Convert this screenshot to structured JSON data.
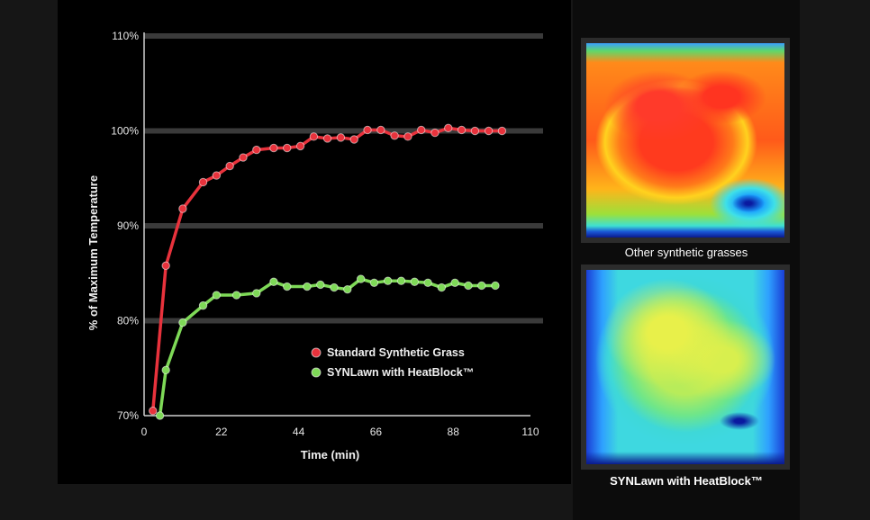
{
  "chart_data": {
    "type": "line",
    "xlabel": "Time (min)",
    "ylabel": "% of Maximum Temperature",
    "xlim": [
      0,
      110
    ],
    "ylim": [
      70,
      110
    ],
    "x_ticks": [
      "0",
      "22",
      "44",
      "66",
      "88",
      "110"
    ],
    "y_ticks": [
      "70%",
      "80%",
      "90%",
      "100%",
      "110%"
    ],
    "grid": "horizontal",
    "legend": "bottom-right",
    "series": [
      {
        "name": "Standard Synthetic Grass",
        "color": "#e8323c",
        "x": [
          2.5,
          6.2,
          11,
          16.8,
          20.6,
          24.4,
          28.2,
          32,
          36.9,
          40.7,
          44.5,
          48.3,
          52.2,
          56,
          59.8,
          63.6,
          67.4,
          71.3,
          75.1,
          78.9,
          82.8,
          86.6,
          90.4,
          94.2,
          98.1,
          101.9
        ],
        "y": [
          70.5,
          85.8,
          91.8,
          94.6,
          95.3,
          96.3,
          97.2,
          98.0,
          98.2,
          98.2,
          98.4,
          99.4,
          99.2,
          99.3,
          99.1,
          100.1,
          100.1,
          99.5,
          99.4,
          100.1,
          99.8,
          100.3,
          100.1,
          100.0,
          100.0,
          100.0
        ]
      },
      {
        "name": "SYNLawn with HeatBlock™",
        "color": "#7ed957",
        "x": [
          4.5,
          6.2,
          11,
          16.8,
          20.6,
          26.3,
          32,
          36.9,
          40.7,
          46.4,
          50.2,
          54.1,
          57.9,
          61.7,
          65.5,
          69.4,
          73.2,
          77,
          80.8,
          84.7,
          88.5,
          92.3,
          96.1,
          100
        ],
        "y": [
          70,
          74.8,
          79.8,
          81.6,
          82.7,
          82.7,
          82.9,
          84.1,
          83.6,
          83.6,
          83.8,
          83.5,
          83.3,
          84.4,
          84.0,
          84.2,
          84.2,
          84.1,
          84.0,
          83.5,
          84.0,
          83.7,
          83.7,
          83.7
        ]
      }
    ]
  },
  "panels": {
    "top_caption": "Other synthetic grasses",
    "bottom_caption": "SYNLawn with HeatBlock™"
  }
}
